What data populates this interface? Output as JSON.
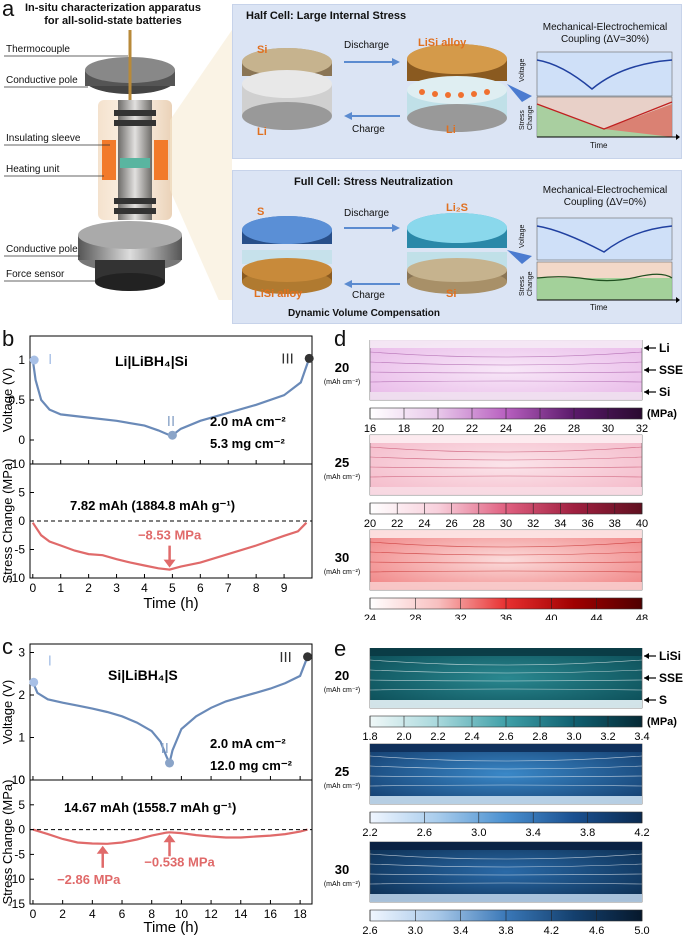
{
  "panel_a": {
    "letter": "a",
    "apparatus_title_1": "In-situ characterization apparatus",
    "apparatus_title_2": "for all-solid-state batteries",
    "callouts": [
      "Thermocouple",
      "Conductive pole",
      "Insulating sleeve",
      "Heating unit",
      "Conductive pole",
      "Force sensor"
    ],
    "half": {
      "title": "Half Cell: Large Internal Stress",
      "left_top": "Si",
      "left_bottom": "Li",
      "right_top": "LiSi alloy",
      "right_bottom": "Li",
      "arrow_top": "Discharge",
      "arrow_bottom": "Charge",
      "mech_title_1": "Mechanical-Electrochemical",
      "mech_title_2": "Coupling (ΔV=30%)",
      "y1": "Voltage",
      "y2a": "Stress",
      "y2b": "Change",
      "x": "Time"
    },
    "full": {
      "title": "Full Cell: Stress Neutralization",
      "left_top": "S",
      "left_bottom": "LiSi alloy",
      "right_top": "Li₂S",
      "right_bottom": "Si",
      "arrow_top": "Discharge",
      "arrow_bottom": "Charge",
      "mech_title_1": "Mechanical-Electrochemical",
      "mech_title_2": "Coupling (ΔV=0%)",
      "y1": "Voltage",
      "y2a": "Stress",
      "y2b": "Change",
      "x": "Time",
      "footer": "Dynamic Volume Compensation"
    }
  },
  "panel_b": {
    "letter": "b",
    "cell": "Li|LiBH₄|Si",
    "current": "2.0 mA cm⁻²",
    "loading": "5.3 mg cm⁻²",
    "capacity": "7.82 mAh (1884.8 mAh g⁻¹)",
    "min_label": "−8.53 MPa",
    "ylabel_top": "Voltage (V)",
    "ylabel_bottom": "Stress Change (MPa)",
    "xlabel": "Time (h)",
    "markers": [
      "I",
      "II",
      "III"
    ]
  },
  "panel_c": {
    "letter": "c",
    "cell": "Si|LiBH₄|S",
    "current": "2.0 mA cm⁻²",
    "loading": "12.0 mg cm⁻²",
    "capacity": "14.67 mAh (1558.7 mAh g⁻¹)",
    "min_label_1": "−2.86 MPa",
    "min_label_2": "−0.538 MPa",
    "ylabel_top": "Voltage (V)",
    "ylabel_bottom": "Stress Change (MPa)",
    "xlabel": "Time (h)",
    "markers": [
      "I",
      "II",
      "III"
    ]
  },
  "panel_d": {
    "letter": "d",
    "layers": [
      "Li",
      "SSE",
      "Si"
    ],
    "unit": "(MPa)",
    "pressure_unit": "(mAh cm⁻²)",
    "rows": [
      {
        "pressure": "20",
        "ticks": [
          "16",
          "18",
          "20",
          "22",
          "24",
          "26",
          "28",
          "30",
          "32"
        ]
      },
      {
        "pressure": "25",
        "ticks": [
          "20",
          "22",
          "24",
          "26",
          "28",
          "30",
          "32",
          "34",
          "36",
          "38",
          "40"
        ]
      },
      {
        "pressure": "30",
        "ticks": [
          "24",
          "28",
          "32",
          "36",
          "40",
          "44",
          "48"
        ]
      }
    ]
  },
  "panel_e": {
    "letter": "e",
    "layers": [
      "LiSi",
      "SSE",
      "S"
    ],
    "unit": "(MPa)",
    "pressure_unit": "(mAh cm⁻²)",
    "rows": [
      {
        "pressure": "20",
        "ticks": [
          "1.8",
          "2.0",
          "2.2",
          "2.4",
          "2.6",
          "2.8",
          "3.0",
          "3.2",
          "3.4"
        ]
      },
      {
        "pressure": "25",
        "ticks": [
          "2.2",
          "2.6",
          "3.0",
          "3.4",
          "3.8",
          "4.2"
        ]
      },
      {
        "pressure": "30",
        "ticks": [
          "2.6",
          "3.0",
          "3.4",
          "3.8",
          "4.2",
          "4.6",
          "5.0"
        ]
      }
    ]
  },
  "chart_data": [
    {
      "type": "line",
      "title": "Li|LiBH₄|Si voltage",
      "xlabel": "Time (h)",
      "ylabel": "Voltage (V)",
      "xlim": [
        0,
        10
      ],
      "ylim": [
        -0.3,
        1.3
      ],
      "x": [
        0,
        0.1,
        0.3,
        0.6,
        1,
        2,
        3,
        4,
        4.5,
        4.9,
        5,
        5.3,
        6,
        7,
        8,
        9,
        9.6,
        9.9
      ],
      "y": [
        1.0,
        0.75,
        0.5,
        0.38,
        0.32,
        0.28,
        0.24,
        0.18,
        0.12,
        0.06,
        0.06,
        0.14,
        0.24,
        0.34,
        0.44,
        0.56,
        0.72,
        1.02
      ]
    },
    {
      "type": "line",
      "title": "Li|LiBH₄|Si stress",
      "xlabel": "Time (h)",
      "ylabel": "Stress Change (MPa)",
      "xlim": [
        0,
        10
      ],
      "ylim": [
        -10,
        10
      ],
      "x": [
        0,
        0.3,
        0.6,
        1,
        1.5,
        2,
        2.5,
        3,
        3.5,
        4,
        4.5,
        4.9,
        5.3,
        6,
        7,
        8,
        9,
        9.5,
        9.8
      ],
      "y": [
        -0.3,
        -2.5,
        -3.6,
        -4.3,
        -5.2,
        -5.8,
        -6.0,
        -6.7,
        -7.3,
        -7.8,
        -8.3,
        -8.53,
        -8.0,
        -7.3,
        -5.8,
        -4.3,
        -2.6,
        -1.8,
        -0.3
      ]
    },
    {
      "type": "line",
      "title": "Si|LiBH₄|S voltage",
      "xlabel": "Time (h)",
      "ylabel": "Voltage (V)",
      "xlim": [
        0,
        19
      ],
      "ylim": [
        0,
        3
      ],
      "x": [
        0,
        0.3,
        1,
        2,
        3,
        4,
        5,
        6,
        7,
        8,
        8.6,
        9,
        9.2,
        9.4,
        10,
        11,
        12,
        13,
        14,
        15,
        16,
        17,
        18,
        18.5
      ],
      "y": [
        2.3,
        2.05,
        1.9,
        1.82,
        1.75,
        1.68,
        1.6,
        1.5,
        1.35,
        1.15,
        0.9,
        0.55,
        0.4,
        0.7,
        1.2,
        1.5,
        1.7,
        1.85,
        1.95,
        2.05,
        2.15,
        2.28,
        2.45,
        2.9
      ]
    },
    {
      "type": "line",
      "title": "Si|LiBH₄|S stress",
      "xlabel": "Time (h)",
      "ylabel": "Stress Change (MPa)",
      "xlim": [
        0,
        19
      ],
      "ylim": [
        -15,
        10
      ],
      "x": [
        0,
        1,
        2,
        3,
        4,
        5,
        6,
        7,
        8,
        9,
        9.2,
        10,
        11,
        12,
        13,
        14,
        15,
        16,
        17,
        18,
        18.5
      ],
      "y": [
        0,
        -0.9,
        -1.9,
        -2.6,
        -2.8,
        -2.86,
        -2.6,
        -2.0,
        -1.2,
        -0.6,
        -0.538,
        -0.7,
        -1.1,
        -1.4,
        -1.6,
        -1.6,
        -1.4,
        -1.2,
        -0.9,
        -0.4,
        0
      ]
    }
  ]
}
